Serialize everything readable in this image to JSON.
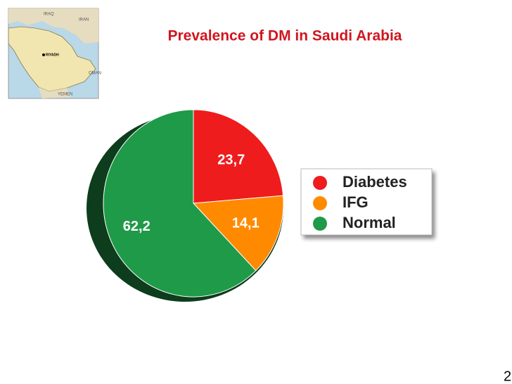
{
  "chart_data": {
    "type": "pie",
    "title": "Prevalence of DM in Saudi Arabia",
    "categories": [
      "Diabetes",
      "IFG",
      "Normal"
    ],
    "values": [
      23.7,
      14.1,
      62.2
    ],
    "value_labels": [
      "23,7",
      "14,1",
      "62,2"
    ],
    "colors": [
      "#ee1c1c",
      "#ff8a00",
      "#1f9a48"
    ],
    "legend": "right"
  },
  "map": {
    "labels": [
      "IRAQ",
      "IRAN",
      "RIYADH",
      "OMAN",
      "YEMEN"
    ]
  },
  "page_number": "2"
}
